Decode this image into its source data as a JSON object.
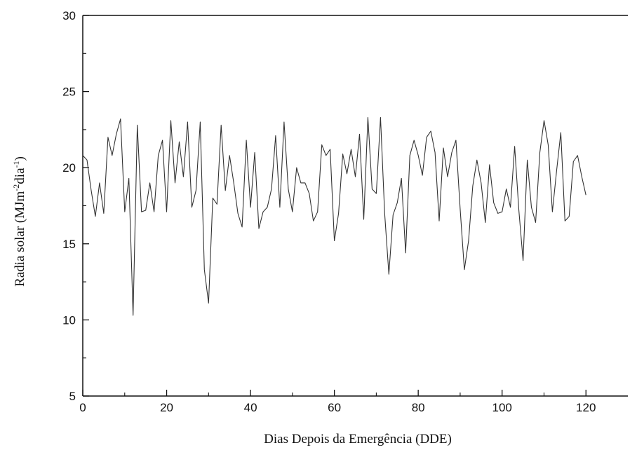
{
  "chart_data": {
    "type": "line",
    "title": "",
    "xlabel": "Dias Depois da Emergência (DDE)",
    "ylabel": {
      "prefix": "Radia solar (MJm",
      "sup1": "-2",
      "middle": "dia",
      "sup2": "-1",
      "suffix": ")"
    },
    "xlim": [
      0,
      130
    ],
    "ylim": [
      5,
      30
    ],
    "xticks": [
      0,
      20,
      40,
      60,
      80,
      100,
      120
    ],
    "yticks": [
      5,
      10,
      15,
      20,
      25,
      30
    ],
    "grid": false,
    "legend": "none",
    "line_color": "#333333",
    "series": [
      {
        "x": [
          0,
          1,
          2,
          3,
          4,
          5,
          6,
          7,
          8,
          9,
          10,
          11,
          12,
          13,
          14,
          15,
          16,
          17,
          18,
          19,
          20,
          21,
          22,
          23,
          24,
          25,
          26,
          27,
          28,
          29,
          30,
          31,
          32,
          33,
          34,
          35,
          36,
          37,
          38,
          39,
          40,
          41,
          42,
          43,
          44,
          45,
          46,
          47,
          48,
          49,
          50,
          51,
          52,
          53,
          54,
          55,
          56,
          57,
          58,
          59,
          60,
          61,
          62,
          63,
          64,
          65,
          66,
          67,
          68,
          69,
          70,
          71,
          72,
          73,
          74,
          75,
          76,
          77,
          78,
          79,
          80,
          81,
          82,
          83,
          84,
          85,
          86,
          87,
          88,
          89,
          90,
          91,
          92,
          93,
          94,
          95,
          96,
          97,
          98,
          99,
          100,
          101,
          102,
          103,
          104,
          105,
          106,
          107,
          108,
          109,
          110,
          111,
          112,
          113,
          114,
          115,
          116,
          117,
          118,
          119,
          120
        ],
        "values": [
          20.8,
          20.5,
          18.5,
          16.8,
          19.0,
          17.0,
          22.0,
          20.8,
          22.2,
          23.2,
          17.1,
          19.3,
          10.3,
          22.8,
          17.1,
          17.2,
          19.0,
          17.1,
          20.8,
          21.8,
          17.1,
          23.1,
          19.0,
          21.7,
          19.4,
          23.0,
          17.4,
          18.5,
          23.0,
          13.3,
          11.1,
          18.0,
          17.6,
          22.8,
          18.5,
          20.8,
          19.0,
          17.0,
          16.1,
          21.8,
          17.4,
          21.0,
          16.0,
          17.1,
          17.4,
          18.6,
          22.1,
          17.4,
          23.0,
          18.6,
          17.1,
          20.0,
          19.0,
          19.0,
          18.3,
          16.5,
          17.1,
          21.5,
          20.8,
          21.2,
          15.2,
          17.0,
          20.9,
          19.6,
          21.2,
          19.4,
          22.2,
          16.6,
          23.3,
          18.6,
          18.3,
          23.3,
          17.0,
          13.0,
          16.9,
          17.7,
          19.3,
          14.4,
          20.8,
          21.8,
          20.8,
          19.5,
          22.0,
          22.4,
          21.0,
          16.5,
          21.3,
          19.4,
          21.0,
          21.8,
          17.3,
          13.3,
          15.2,
          18.8,
          20.5,
          19.0,
          16.4,
          20.2,
          17.7,
          17.0,
          17.1,
          18.6,
          17.4,
          21.4,
          17.2,
          13.9,
          20.5,
          17.4,
          16.4,
          21.0,
          23.1,
          21.5,
          17.1,
          19.8,
          22.3,
          16.5,
          16.8,
          20.4,
          20.8,
          19.4,
          18.2
        ]
      }
    ]
  }
}
